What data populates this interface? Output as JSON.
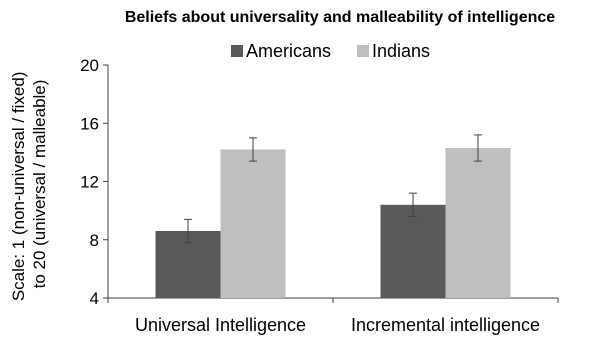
{
  "chart_data": {
    "type": "bar",
    "title": "Beliefs about universality and malleability of intelligence",
    "ylabel_lines": [
      "Scale: 1 (non-universal / fixed)",
      "to 20 (universal / malleable)"
    ],
    "xlabel": "",
    "categories": [
      "Universal Intelligence",
      "Incremental intelligence"
    ],
    "series": [
      {
        "name": "Americans",
        "values": [
          8.6,
          10.4
        ],
        "errors": [
          0.8,
          0.8
        ],
        "color": "#595959"
      },
      {
        "name": "Indians",
        "values": [
          14.2,
          14.3
        ],
        "errors": [
          0.8,
          0.9
        ],
        "color": "#bfbfbf"
      }
    ],
    "ylim": [
      4,
      20
    ],
    "yticks": [
      4,
      8,
      12,
      16,
      20
    ],
    "legend_position": "top-center",
    "grid": false
  }
}
